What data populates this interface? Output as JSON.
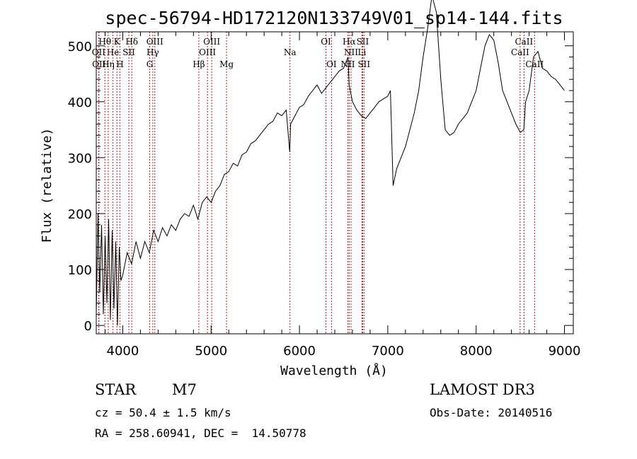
{
  "chart_data": {
    "type": "line",
    "title": "spec-56794-HD172120N133749V01_sp14-144.fits",
    "xlabel": "Wavelength (Å)",
    "ylabel": "Flux (relative)",
    "xlim": [
      3700,
      9100
    ],
    "ylim": [
      -15,
      525
    ],
    "x_ticks": [
      4000,
      5000,
      6000,
      7000,
      8000,
      9000
    ],
    "y_ticks": [
      0,
      100,
      200,
      300,
      400,
      500
    ],
    "grid": false,
    "series": [
      {
        "name": "flux",
        "x": [
          3700,
          3720,
          3740,
          3760,
          3780,
          3800,
          3820,
          3840,
          3860,
          3880,
          3900,
          3920,
          3940,
          3960,
          3980,
          4000,
          4050,
          4100,
          4150,
          4200,
          4250,
          4300,
          4350,
          4400,
          4450,
          4500,
          4550,
          4600,
          4650,
          4700,
          4750,
          4800,
          4850,
          4900,
          4950,
          5000,
          5050,
          5100,
          5150,
          5200,
          5250,
          5300,
          5350,
          5400,
          5450,
          5500,
          5550,
          5600,
          5650,
          5700,
          5750,
          5800,
          5850,
          5890,
          5900,
          5950,
          6000,
          6050,
          6100,
          6150,
          6200,
          6250,
          6300,
          6350,
          6400,
          6450,
          6500,
          6550,
          6563,
          6600,
          6650,
          6700,
          6750,
          6800,
          6850,
          6900,
          6950,
          7000,
          7030,
          7060,
          7100,
          7150,
          7200,
          7250,
          7300,
          7350,
          7400,
          7450,
          7500,
          7550,
          7600,
          7650,
          7700,
          7750,
          7800,
          7850,
          7900,
          7950,
          8000,
          8050,
          8100,
          8150,
          8200,
          8250,
          8300,
          8350,
          8400,
          8450,
          8500,
          8540,
          8560,
          8600,
          8650,
          8700,
          8750,
          8800,
          8850,
          8900,
          8950,
          9000
        ],
        "y": [
          20,
          200,
          60,
          180,
          20,
          160,
          40,
          190,
          10,
          170,
          30,
          150,
          0,
          140,
          80,
          90,
          130,
          110,
          150,
          120,
          150,
          130,
          170,
          150,
          175,
          160,
          180,
          170,
          190,
          200,
          195,
          215,
          190,
          220,
          230,
          220,
          240,
          250,
          270,
          275,
          290,
          285,
          305,
          310,
          325,
          330,
          340,
          350,
          360,
          365,
          380,
          375,
          385,
          310,
          360,
          375,
          390,
          395,
          410,
          420,
          430,
          415,
          425,
          435,
          445,
          455,
          460,
          480,
          430,
          400,
          385,
          375,
          370,
          380,
          390,
          400,
          405,
          410,
          420,
          250,
          280,
          300,
          320,
          350,
          380,
          420,
          480,
          530,
          590,
          560,
          440,
          350,
          340,
          345,
          360,
          370,
          380,
          400,
          420,
          460,
          500,
          520,
          510,
          470,
          420,
          400,
          380,
          360,
          345,
          350,
          400,
          420,
          480,
          490,
          460,
          455,
          445,
          440,
          430,
          420
        ]
      }
    ],
    "annotations": [
      {
        "label": "Hθ",
        "wl": 3798,
        "row": 1
      },
      {
        "label": "OII",
        "wl": 3727,
        "row": 2
      },
      {
        "label": "OII",
        "wl": 3730,
        "row": 3
      },
      {
        "label": "K",
        "wl": 3934,
        "row": 1
      },
      {
        "label": "He",
        "wl": 3889,
        "row": 2
      },
      {
        "label": "Hη",
        "wl": 3835,
        "row": 3
      },
      {
        "label": "SII",
        "wl": 4069,
        "row": 2
      },
      {
        "label": "H",
        "wl": 3968,
        "row": 3
      },
      {
        "label": "Hδ",
        "wl": 4102,
        "row": 1
      },
      {
        "label": "OIII",
        "wl": 4363,
        "row": 1
      },
      {
        "label": "Hγ",
        "wl": 4340,
        "row": 2
      },
      {
        "label": "G",
        "wl": 4305,
        "row": 3
      },
      {
        "label": "Hβ",
        "wl": 4861,
        "row": 3
      },
      {
        "label": "OIII",
        "wl": 5007,
        "row": 1
      },
      {
        "label": "OIII",
        "wl": 4959,
        "row": 2
      },
      {
        "label": "Mg",
        "wl": 5175,
        "row": 3
      },
      {
        "label": "Na",
        "wl": 5893,
        "row": 2
      },
      {
        "label": "OI",
        "wl": 6300,
        "row": 1
      },
      {
        "label": "OI",
        "wl": 6363,
        "row": 3
      },
      {
        "label": "Hα",
        "wl": 6563,
        "row": 1
      },
      {
        "label": "SII",
        "wl": 6716,
        "row": 1
      },
      {
        "label": "NII",
        "wl": 6584,
        "row": 2
      },
      {
        "label": "Li",
        "wl": 6708,
        "row": 2
      },
      {
        "label": "NII",
        "wl": 6548,
        "row": 3
      },
      {
        "label": "SII",
        "wl": 6731,
        "row": 3
      },
      {
        "label": "CaII",
        "wl": 8542,
        "row": 1
      },
      {
        "label": "CaII",
        "wl": 8498,
        "row": 2
      },
      {
        "label": "CaII",
        "wl": 8662,
        "row": 3
      }
    ],
    "line_color": "#000000",
    "marker_color": "#b22222"
  },
  "info": {
    "object_class": "STAR",
    "subclass": "M7",
    "survey": "LAMOST DR3",
    "cz": "cz = 50.4 ± 1.5 km/s",
    "obs_date": "Obs-Date: 20140516",
    "coords": "RA = 258.60941, DEC =  14.50778"
  }
}
